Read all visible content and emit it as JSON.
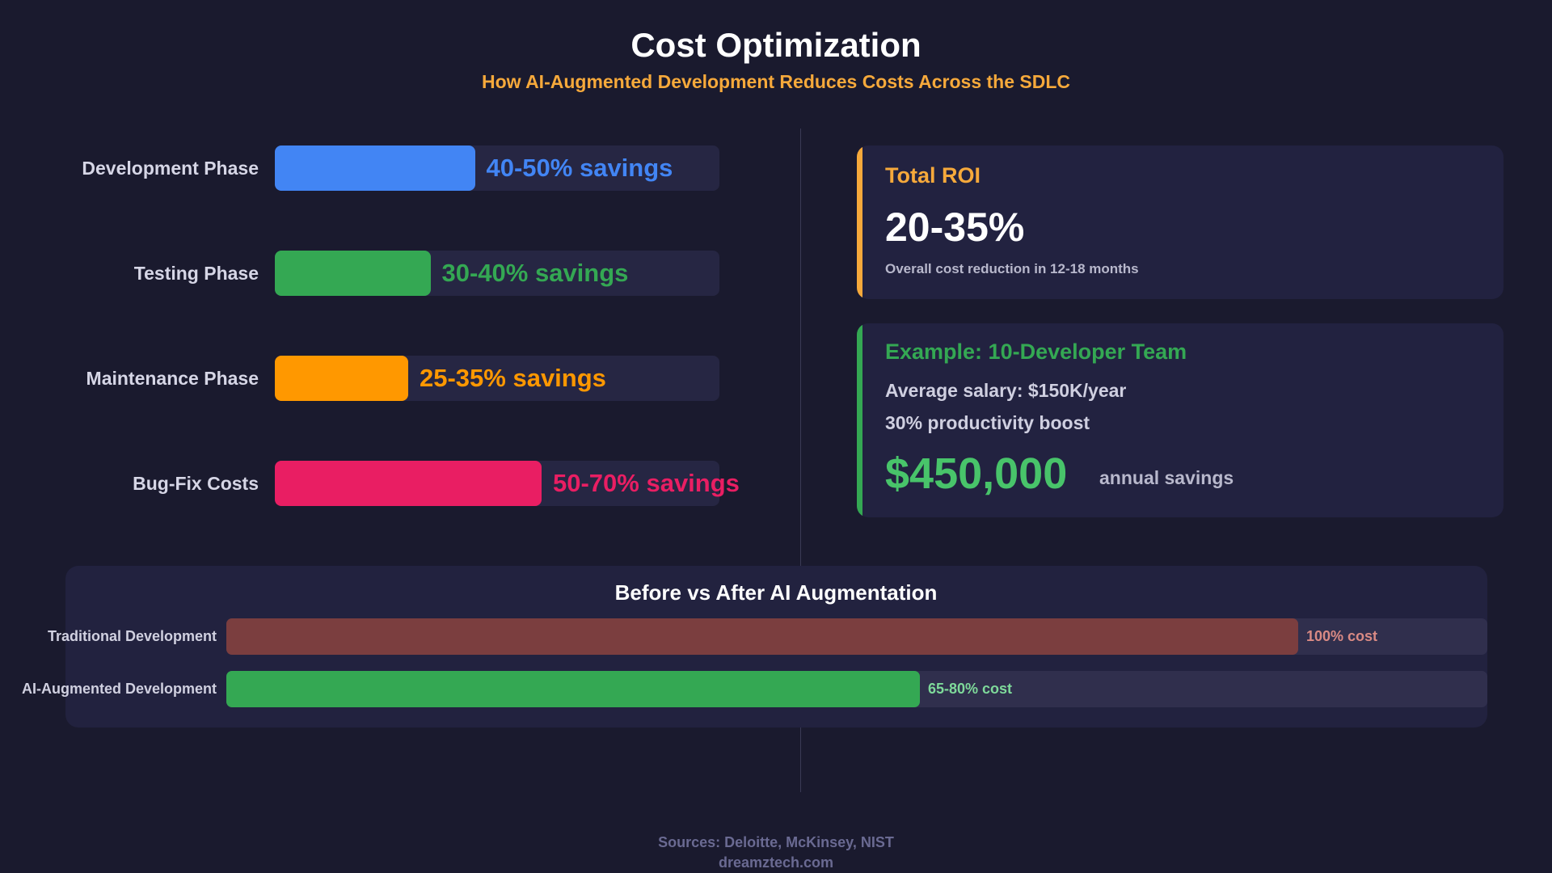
{
  "header": {
    "title": "Cost Optimization",
    "subtitle": "How AI-Augmented Development Reduces Costs Across the SDLC"
  },
  "chart_data": [
    {
      "type": "bar",
      "orientation": "horizontal",
      "categories": [
        "Development Phase",
        "Testing Phase",
        "Maintenance Phase",
        "Bug-Fix Costs"
      ],
      "values": [
        45,
        35,
        30,
        60
      ],
      "xlim": [
        0,
        100
      ],
      "data_labels": [
        "40-50% savings",
        "30-40% savings",
        "25-35% savings",
        "50-70% savings"
      ],
      "colors": [
        "#4285f4",
        "#34a853",
        "#ff9800",
        "#e91e63"
      ],
      "grid": false
    },
    {
      "type": "bar",
      "orientation": "horizontal",
      "title": "Before vs After AI Augmentation",
      "categories": [
        "Traditional Development",
        "AI-Augmented Development"
      ],
      "values": [
        85,
        55
      ],
      "xlim": [
        0,
        100
      ],
      "data_labels": [
        "100% cost",
        "65-80% cost"
      ],
      "colors": [
        "#7b3e3f",
        "#34a853"
      ],
      "label_colors": [
        "#d98a84",
        "#7ed99a"
      ],
      "grid": false
    }
  ],
  "roi_card": {
    "title": "Total ROI",
    "value": "20-35%",
    "caption": "Overall cost reduction in 12-18 months",
    "accent": "#f6a93b"
  },
  "example_card": {
    "title": "Example: 10-Developer Team",
    "line1": "Average salary: $150K/year",
    "line2": "30% productivity boost",
    "amount": "$450,000",
    "amount_label": "annual savings",
    "accent": "#34a853"
  },
  "footer": {
    "sources": "Sources: Deloitte, McKinsey, NIST",
    "site": "dreamztech.com"
  }
}
